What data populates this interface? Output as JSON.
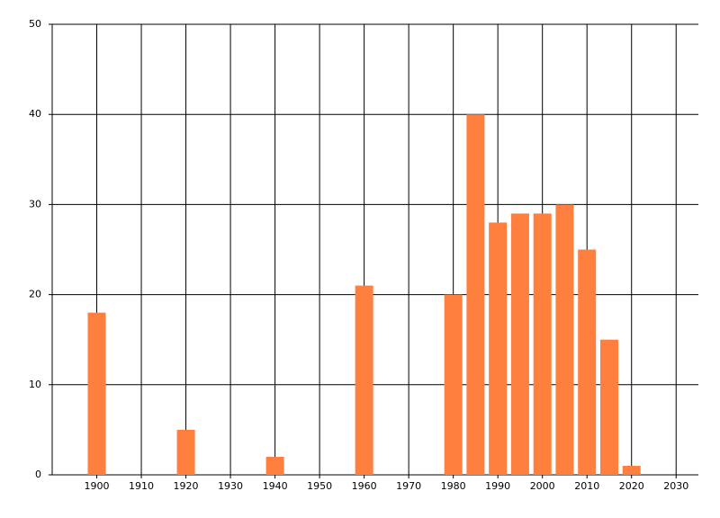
{
  "chart_data": {
    "type": "bar",
    "x": [
      1900,
      1920,
      1940,
      1960,
      1980,
      1985,
      1990,
      1995,
      2000,
      2005,
      2010,
      2015,
      2020
    ],
    "values": [
      18,
      5,
      2,
      21,
      20,
      40,
      28,
      29,
      29,
      30,
      25,
      15,
      1
    ],
    "color": "#ff7f3f",
    "xlim": [
      1890,
      2035
    ],
    "xticks": [
      1900,
      1910,
      1920,
      1930,
      1940,
      1950,
      1960,
      1970,
      1980,
      1990,
      2000,
      2010,
      2020,
      2030
    ],
    "ylim": [
      0,
      50
    ],
    "yticks": [
      0,
      10,
      20,
      30,
      40,
      50
    ],
    "grid": true
  }
}
